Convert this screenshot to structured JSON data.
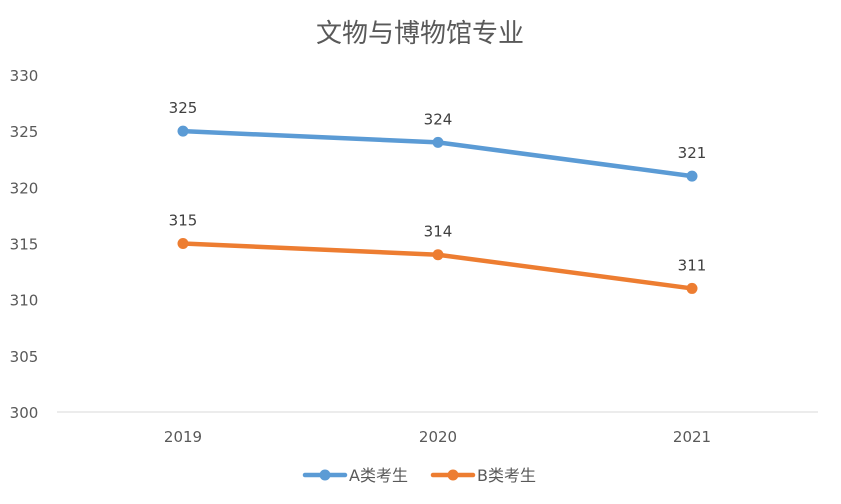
{
  "chart_data": {
    "type": "line",
    "title": "文物与博物馆专业",
    "categories": [
      "2019",
      "2020",
      "2021"
    ],
    "series": [
      {
        "name": "A类考生",
        "values": [
          325,
          324,
          321
        ],
        "color": "#5B9BD5"
      },
      {
        "name": "B类考生",
        "values": [
          315,
          314,
          311
        ],
        "color": "#ED7D31"
      }
    ],
    "ylim": [
      300,
      330
    ],
    "yticks": [
      300,
      305,
      310,
      315,
      320,
      325,
      330
    ],
    "grid": false,
    "legend": "bottom",
    "data_labels": true
  }
}
